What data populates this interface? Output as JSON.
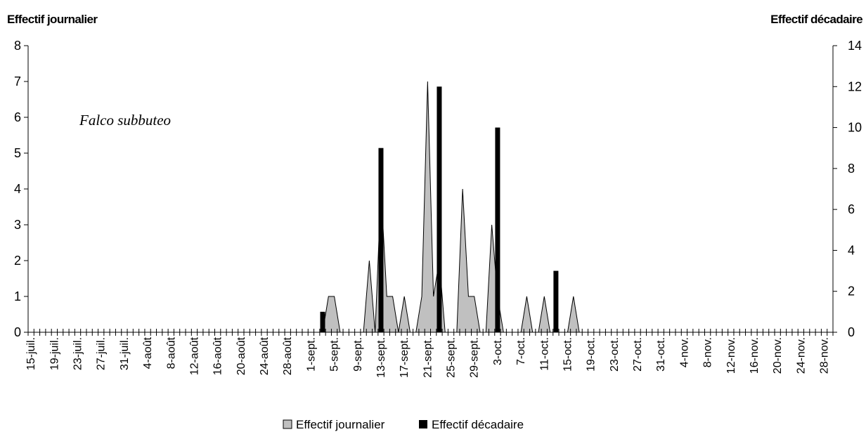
{
  "chart_data": {
    "type": "area+bar",
    "annotation": "Falco subbuteo",
    "y_left_title": "Effectif journalier",
    "y_right_title": "Effectif décadaire",
    "y_left_range": [
      0,
      8
    ],
    "y_left_ticks": [
      "0",
      "1",
      "2",
      "3",
      "4",
      "5",
      "6",
      "7",
      "8"
    ],
    "y_right_range": [
      0,
      14
    ],
    "y_right_ticks": [
      "0",
      "2",
      "4",
      "6",
      "8",
      "10",
      "12",
      "14"
    ],
    "x_labels": [
      "15-juil.",
      "19-juil.",
      "23-juil.",
      "27-juil.",
      "31-juil.",
      "4-août",
      "8-août",
      "12-août",
      "16-août",
      "20-août",
      "24-août",
      "28-août",
      "1-sept.",
      "5-sept.",
      "9-sept.",
      "13-sept.",
      "17-sept.",
      "21-sept.",
      "25-sept.",
      "29-sept.",
      "3-oct.",
      "7-oct.",
      "11-oct.",
      "15-oct.",
      "19-oct.",
      "23-oct.",
      "27-oct.",
      "31-oct.",
      "4-nov.",
      "8-nov.",
      "12-nov.",
      "16-nov.",
      "20-nov.",
      "24-nov.",
      "28-nov."
    ],
    "day_count": 138,
    "series": [
      {
        "name": "Effectif journalier",
        "kind": "area",
        "color": "#c0c0c0",
        "axis": "left",
        "values": [
          0,
          0,
          0,
          0,
          0,
          0,
          0,
          0,
          0,
          0,
          0,
          0,
          0,
          0,
          0,
          0,
          0,
          0,
          0,
          0,
          0,
          0,
          0,
          0,
          0,
          0,
          0,
          0,
          0,
          0,
          0,
          0,
          0,
          0,
          0,
          0,
          0,
          0,
          0,
          0,
          0,
          0,
          0,
          0,
          0,
          0,
          0,
          0,
          0,
          0,
          0,
          1,
          1,
          0,
          0,
          0,
          0,
          0,
          2,
          0,
          4,
          1,
          1,
          0,
          1,
          0,
          0,
          1,
          7,
          1,
          2,
          0,
          0,
          0,
          4,
          1,
          1,
          0,
          0,
          3,
          1,
          0,
          0,
          0,
          0,
          1,
          0,
          0,
          1,
          0,
          0,
          0,
          0,
          1,
          0,
          0,
          0,
          0,
          0,
          0,
          0,
          0,
          0,
          0,
          0,
          0,
          0,
          0,
          0,
          0,
          0,
          0,
          0,
          0,
          0,
          0,
          0,
          0,
          0,
          0,
          0,
          0,
          0,
          0,
          0,
          0,
          0,
          0,
          0,
          0,
          0,
          0,
          0,
          0,
          0,
          0,
          0,
          0
        ]
      },
      {
        "name": "Effectif décadaire",
        "kind": "bar",
        "color": "#000000",
        "axis": "right",
        "points": [
          {
            "day": 50,
            "value": 1
          },
          {
            "day": 60,
            "value": 9
          },
          {
            "day": 70,
            "value": 12
          },
          {
            "day": 80,
            "value": 10
          },
          {
            "day": 90,
            "value": 3
          }
        ]
      }
    ]
  }
}
